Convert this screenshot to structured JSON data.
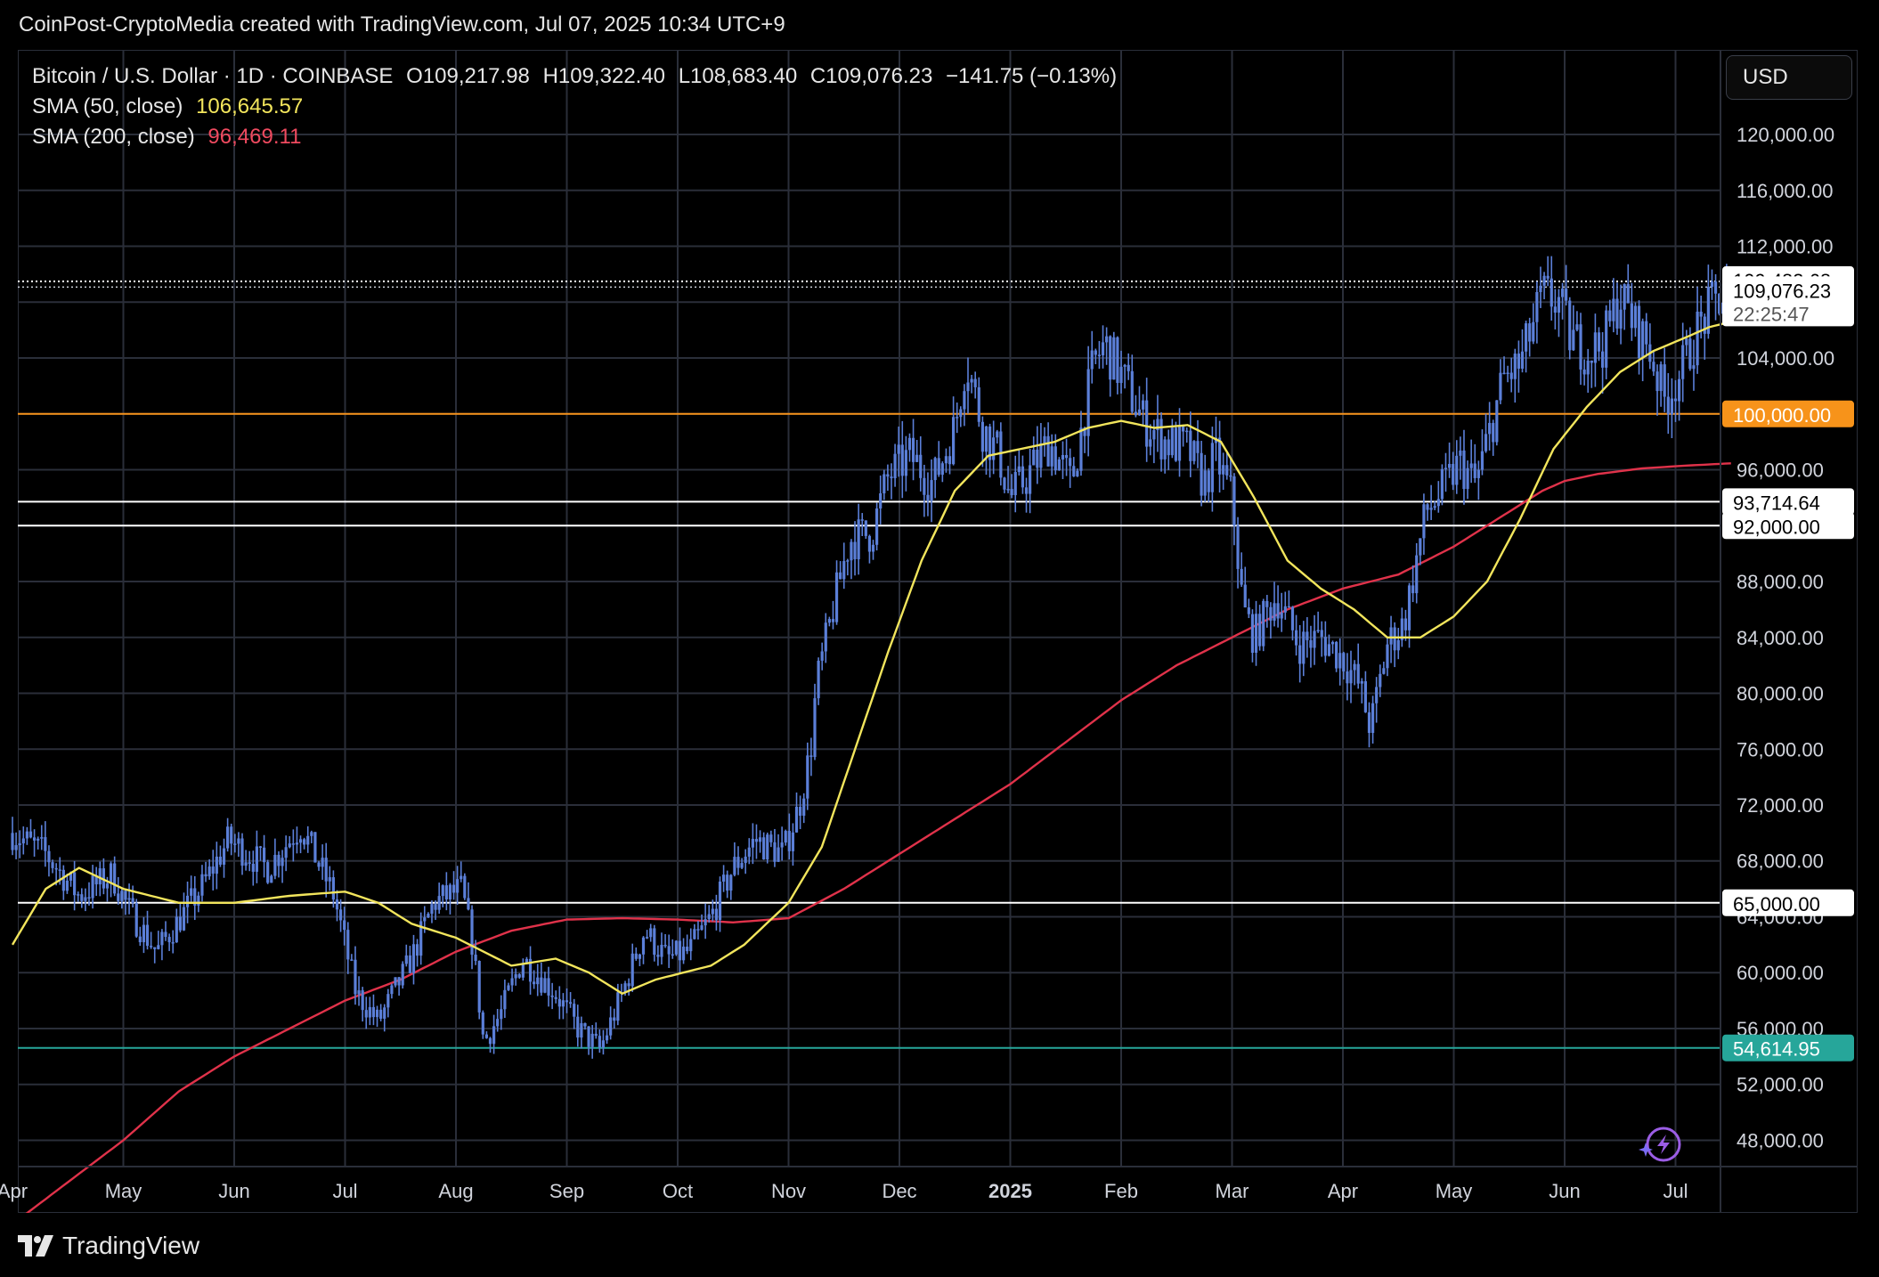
{
  "header": {
    "text": "CoinPost-CryptoMedia created with TradingView.com, Jul 07, 2025 10:34 UTC+9"
  },
  "legend": {
    "symbol": "Bitcoin / U.S. Dollar · 1D · COINBASE",
    "open": "O109,217.98",
    "high": "H109,322.40",
    "low": "L108,683.40",
    "close": "C109,076.23",
    "change": "−141.75 (−0.13%)",
    "sma50_label": "SMA (50, close)",
    "sma50_value": "106,645.57",
    "sma200_label": "SMA (200, close)",
    "sma200_value": "96,469.11"
  },
  "currency_button": "USD",
  "footer": {
    "brand": "TradingView"
  },
  "colors": {
    "background": "#000000",
    "candle": "#5b7fd8",
    "sma50": "#f2e55c",
    "sma200": "#e0324a",
    "orange_level": "#f7931a",
    "white_level": "#ffffff",
    "teal_level": "#26a69a",
    "grid": "#2a2e39"
  },
  "chart_data": {
    "type": "candlestick",
    "title": "Bitcoin / U.S. Dollar · 1D · COINBASE",
    "ylim": [
      46500,
      123000
    ],
    "y_ticks": [
      "120,000.00",
      "116,000.00",
      "112,000.00",
      "108,000.00",
      "104,000.00",
      "100,000.00",
      "96,000.00",
      "92,000.00",
      "88,000.00",
      "84,000.00",
      "80,000.00",
      "76,000.00",
      "72,000.00",
      "68,000.00",
      "64,000.00",
      "60,000.00",
      "56,000.00",
      "52,000.00",
      "48,000.00"
    ],
    "y_tick_values": [
      120000,
      116000,
      112000,
      108000,
      104000,
      100000,
      96000,
      92000,
      88000,
      84000,
      80000,
      76000,
      72000,
      68000,
      64000,
      60000,
      56000,
      52000,
      48000
    ],
    "x_labels": [
      {
        "label": "Apr",
        "month_index": 0
      },
      {
        "label": "May",
        "month_index": 1
      },
      {
        "label": "Jun",
        "month_index": 2
      },
      {
        "label": "Jul",
        "month_index": 3
      },
      {
        "label": "Aug",
        "month_index": 4
      },
      {
        "label": "Sep",
        "month_index": 5
      },
      {
        "label": "Oct",
        "month_index": 6
      },
      {
        "label": "Nov",
        "month_index": 7
      },
      {
        "label": "Dec",
        "month_index": 8
      },
      {
        "label": "2025",
        "month_index": 9
      },
      {
        "label": "Feb",
        "month_index": 10
      },
      {
        "label": "Mar",
        "month_index": 11
      },
      {
        "label": "Apr",
        "month_index": 12
      },
      {
        "label": "May",
        "month_index": 13
      },
      {
        "label": "Jun",
        "month_index": 14
      },
      {
        "label": "Jul",
        "month_index": 15
      }
    ],
    "price_keypoints": [
      [
        0,
        70000
      ],
      [
        0.3,
        68500
      ],
      [
        0.6,
        65500
      ],
      [
        0.9,
        67000
      ],
      [
        1.05,
        64500
      ],
      [
        1.3,
        61500
      ],
      [
        1.7,
        66000
      ],
      [
        1.95,
        69500
      ],
      [
        2.3,
        67500
      ],
      [
        2.6,
        70500
      ],
      [
        2.9,
        65500
      ],
      [
        3.1,
        58500
      ],
      [
        3.3,
        56500
      ],
      [
        3.6,
        61000
      ],
      [
        3.8,
        65000
      ],
      [
        4.05,
        66000
      ],
      [
        4.15,
        62000
      ],
      [
        4.25,
        55000
      ],
      [
        4.4,
        57000
      ],
      [
        4.6,
        61000
      ],
      [
        4.9,
        58500
      ],
      [
        5.1,
        56000
      ],
      [
        5.3,
        54500
      ],
      [
        5.5,
        58500
      ],
      [
        5.7,
        63000
      ],
      [
        5.9,
        61000
      ],
      [
        6.1,
        61500
      ],
      [
        6.3,
        64000
      ],
      [
        6.5,
        67500
      ],
      [
        6.7,
        69500
      ],
      [
        6.95,
        68500
      ],
      [
        7.1,
        72000
      ],
      [
        7.2,
        76000
      ],
      [
        7.25,
        80500
      ],
      [
        7.4,
        86000
      ],
      [
        7.55,
        91000
      ],
      [
        7.75,
        91500
      ],
      [
        7.9,
        95500
      ],
      [
        8.1,
        97000
      ],
      [
        8.3,
        95000
      ],
      [
        8.5,
        99000
      ],
      [
        8.6,
        104000
      ],
      [
        8.75,
        99000
      ],
      [
        8.9,
        97000
      ],
      [
        9.0,
        94000
      ],
      [
        9.15,
        95500
      ],
      [
        9.35,
        98000
      ],
      [
        9.55,
        95000
      ],
      [
        9.75,
        103500
      ],
      [
        9.85,
        105000
      ],
      [
        10.05,
        102000
      ],
      [
        10.2,
        99500
      ],
      [
        10.4,
        98000
      ],
      [
        10.6,
        97500
      ],
      [
        10.75,
        95000
      ],
      [
        10.85,
        97000
      ],
      [
        11.0,
        94000
      ],
      [
        11.1,
        86000
      ],
      [
        11.2,
        84000
      ],
      [
        11.4,
        87000
      ],
      [
        11.6,
        83500
      ],
      [
        11.8,
        84000
      ],
      [
        12.0,
        82500
      ],
      [
        12.15,
        80500
      ],
      [
        12.25,
        77500
      ],
      [
        12.4,
        83500
      ],
      [
        12.55,
        85000
      ],
      [
        12.75,
        93000
      ],
      [
        12.9,
        94500
      ],
      [
        13.05,
        96500
      ],
      [
        13.2,
        95000
      ],
      [
        13.3,
        98000
      ],
      [
        13.45,
        102500
      ],
      [
        13.6,
        103500
      ],
      [
        13.8,
        108500
      ],
      [
        13.95,
        108000
      ],
      [
        14.05,
        105500
      ],
      [
        14.2,
        104500
      ],
      [
        14.35,
        105000
      ],
      [
        14.5,
        108500
      ],
      [
        14.65,
        106000
      ],
      [
        14.75,
        105000
      ],
      [
        14.9,
        101000
      ],
      [
        15.05,
        103000
      ],
      [
        15.2,
        106000
      ],
      [
        15.35,
        108000
      ],
      [
        15.45,
        108500
      ],
      [
        15.52,
        109076
      ]
    ],
    "sma50_keypoints": [
      [
        0,
        62000
      ],
      [
        0.3,
        66000
      ],
      [
        0.6,
        67500
      ],
      [
        1.0,
        66000
      ],
      [
        1.5,
        65000
      ],
      [
        2.0,
        65000
      ],
      [
        2.5,
        65500
      ],
      [
        3.0,
        65800
      ],
      [
        3.3,
        65000
      ],
      [
        3.6,
        63500
      ],
      [
        4.0,
        62500
      ],
      [
        4.5,
        60500
      ],
      [
        4.9,
        61000
      ],
      [
        5.2,
        60000
      ],
      [
        5.5,
        58500
      ],
      [
        5.8,
        59500
      ],
      [
        6.3,
        60500
      ],
      [
        6.6,
        62000
      ],
      [
        7.0,
        65000
      ],
      [
        7.3,
        69000
      ],
      [
        7.6,
        76000
      ],
      [
        7.9,
        83000
      ],
      [
        8.2,
        89500
      ],
      [
        8.5,
        94500
      ],
      [
        8.8,
        97000
      ],
      [
        9.1,
        97500
      ],
      [
        9.4,
        98000
      ],
      [
        9.7,
        99000
      ],
      [
        10.0,
        99500
      ],
      [
        10.3,
        99000
      ],
      [
        10.6,
        99200
      ],
      [
        10.9,
        98000
      ],
      [
        11.2,
        94000
      ],
      [
        11.5,
        89500
      ],
      [
        11.8,
        87500
      ],
      [
        12.1,
        86000
      ],
      [
        12.4,
        84000
      ],
      [
        12.7,
        84000
      ],
      [
        13.0,
        85500
      ],
      [
        13.3,
        88000
      ],
      [
        13.6,
        92500
      ],
      [
        13.9,
        97500
      ],
      [
        14.2,
        100500
      ],
      [
        14.5,
        103000
      ],
      [
        14.8,
        104500
      ],
      [
        15.1,
        105500
      ],
      [
        15.3,
        106200
      ],
      [
        15.52,
        106645
      ]
    ],
    "sma200_keypoints": [
      [
        0,
        42000
      ],
      [
        0.5,
        45000
      ],
      [
        1.0,
        48000
      ],
      [
        1.5,
        51500
      ],
      [
        2.0,
        54000
      ],
      [
        2.5,
        56000
      ],
      [
        3.0,
        58000
      ],
      [
        3.5,
        59500
      ],
      [
        4.0,
        61500
      ],
      [
        4.5,
        63000
      ],
      [
        5.0,
        63800
      ],
      [
        5.5,
        63900
      ],
      [
        6.0,
        63800
      ],
      [
        6.5,
        63600
      ],
      [
        7.0,
        63900
      ],
      [
        7.5,
        66000
      ],
      [
        8.0,
        68500
      ],
      [
        8.5,
        71000
      ],
      [
        9.0,
        73500
      ],
      [
        9.5,
        76500
      ],
      [
        10.0,
        79500
      ],
      [
        10.5,
        82000
      ],
      [
        11.0,
        84000
      ],
      [
        11.5,
        86000
      ],
      [
        12.0,
        87500
      ],
      [
        12.5,
        88500
      ],
      [
        13.0,
        90500
      ],
      [
        13.5,
        93000
      ],
      [
        13.8,
        94500
      ],
      [
        14.0,
        95200
      ],
      [
        14.3,
        95700
      ],
      [
        14.7,
        96100
      ],
      [
        15.1,
        96300
      ],
      [
        15.52,
        96469
      ]
    ],
    "levels": [
      {
        "value": 109483.68,
        "label": "109,483.68",
        "style": "dotted",
        "color": "#ffffff"
      },
      {
        "value": 100000.0,
        "label": "100,000.00",
        "style": "solid",
        "color": "#f7931a"
      },
      {
        "value": 93714.64,
        "label": "93,714.64",
        "style": "solid",
        "color": "#ffffff"
      },
      {
        "value": 92000.0,
        "label": "92,000.00",
        "style": "solid",
        "color": "#ffffff"
      },
      {
        "value": 65000.0,
        "label": "65,000.00",
        "style": "solid",
        "color": "#ffffff"
      },
      {
        "value": 54614.95,
        "label": "54,614.95",
        "style": "solid",
        "color": "#26a69a"
      }
    ],
    "last_price": {
      "value": 109076.23,
      "label": "109,076.23",
      "countdown": "22:25:47"
    }
  }
}
